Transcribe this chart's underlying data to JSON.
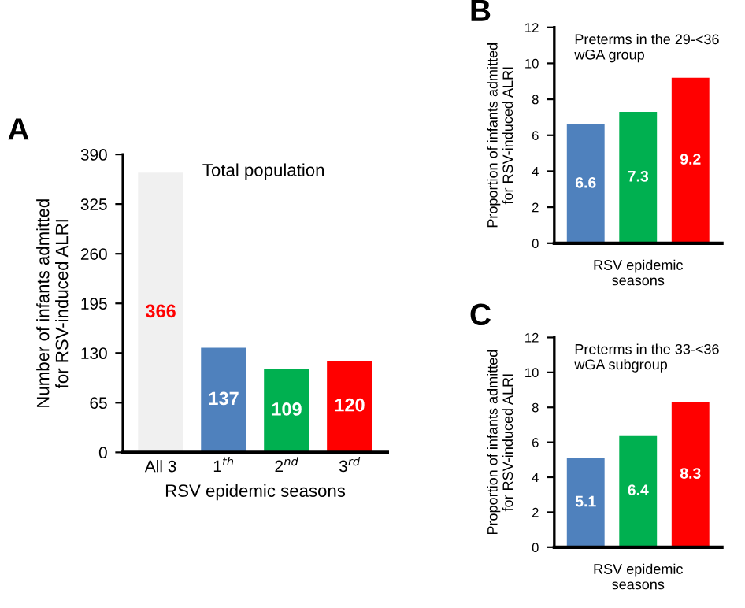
{
  "chart_data": [
    {
      "type": "bar",
      "title": "Total population",
      "ylabel": "Number of infants admitted\nfor RSV-induced ALRI",
      "xlabel": "RSV epidemic seasons",
      "annotations": [
        "A"
      ],
      "categories": [
        "All 3",
        "1$^{th}$",
        "2$^{nd}$",
        "3$^{rd}$"
      ],
      "values": [
        366,
        137,
        109,
        120
      ],
      "colors": [
        "#f0f0f0",
        "#4f81bd",
        "#00b050",
        "#ff0000"
      ],
      "ylim": [
        0,
        390
      ],
      "yticks": [
        0,
        65,
        130,
        195,
        260,
        325,
        390
      ],
      "grid": false,
      "data_labels": true
    },
    {
      "type": "bar",
      "title": "Preterms in the 29-<36\nwGA group",
      "ylabel": "Proportion of infants admitted\nfor RSV-induced ALRI",
      "xlabel": "RSV epidemic\nseasons",
      "annotations": [
        "B"
      ],
      "categories": [
        null,
        null,
        null
      ],
      "values": [
        6.6,
        7.3,
        9.2
      ],
      "colors": [
        "#4f81bd",
        "#00b050",
        "#ff0000"
      ],
      "ylim": [
        0,
        12
      ],
      "yticks": [
        0,
        2,
        4,
        6,
        8,
        10,
        12
      ],
      "grid": false,
      "data_labels": true
    },
    {
      "type": "bar",
      "title": "Preterms in the 33-<36\nwGA subgroup",
      "ylabel": "Proportion of infants admitted\nfor RSV-induced ALRI",
      "xlabel": "RSV epidemic\nseasons",
      "annotations": [
        "C"
      ],
      "categories": [
        null,
        null,
        null
      ],
      "values": [
        5.1,
        6.4,
        8.3
      ],
      "colors": [
        "#4f81bd",
        "#00b050",
        "#ff0000"
      ],
      "ylim": [
        0,
        12
      ],
      "yticks": [
        0,
        2,
        4,
        6,
        8,
        10,
        12
      ],
      "grid": false,
      "data_labels": true
    }
  ]
}
